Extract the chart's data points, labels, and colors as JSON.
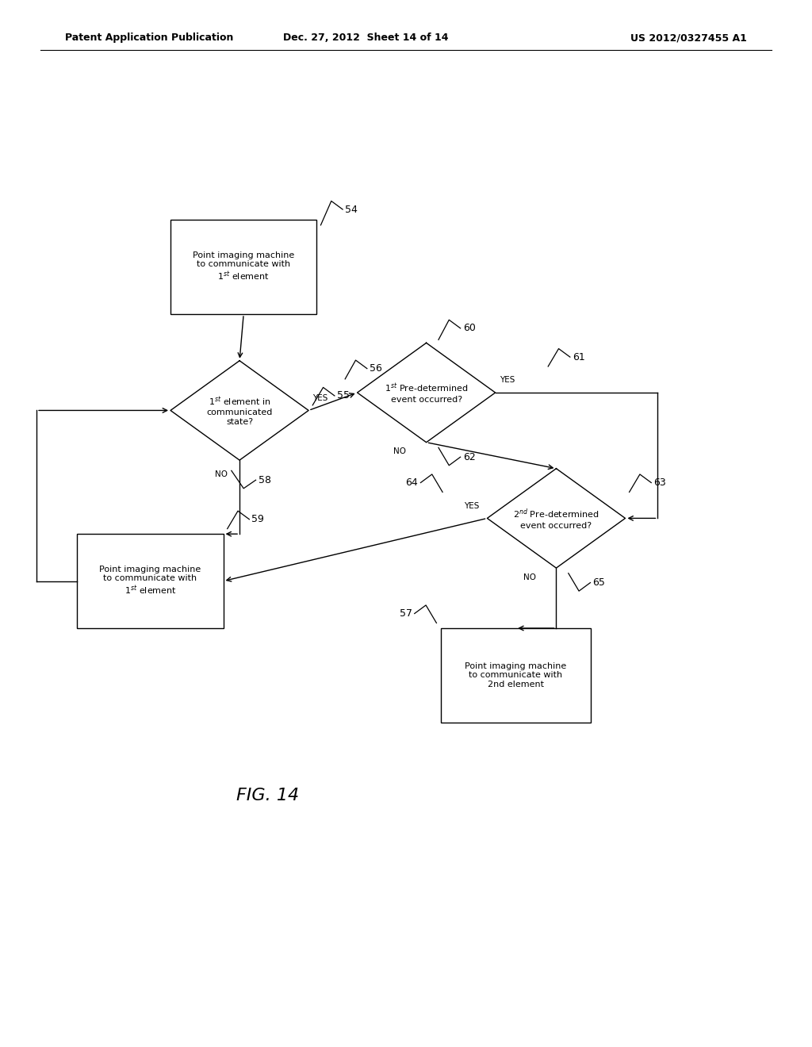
{
  "bg_color": "#ffffff",
  "header_left": "Patent Application Publication",
  "header_mid": "Dec. 27, 2012  Sheet 14 of 14",
  "header_right": "US 2012/0327455 A1",
  "fig_label": "FIG. 14"
}
